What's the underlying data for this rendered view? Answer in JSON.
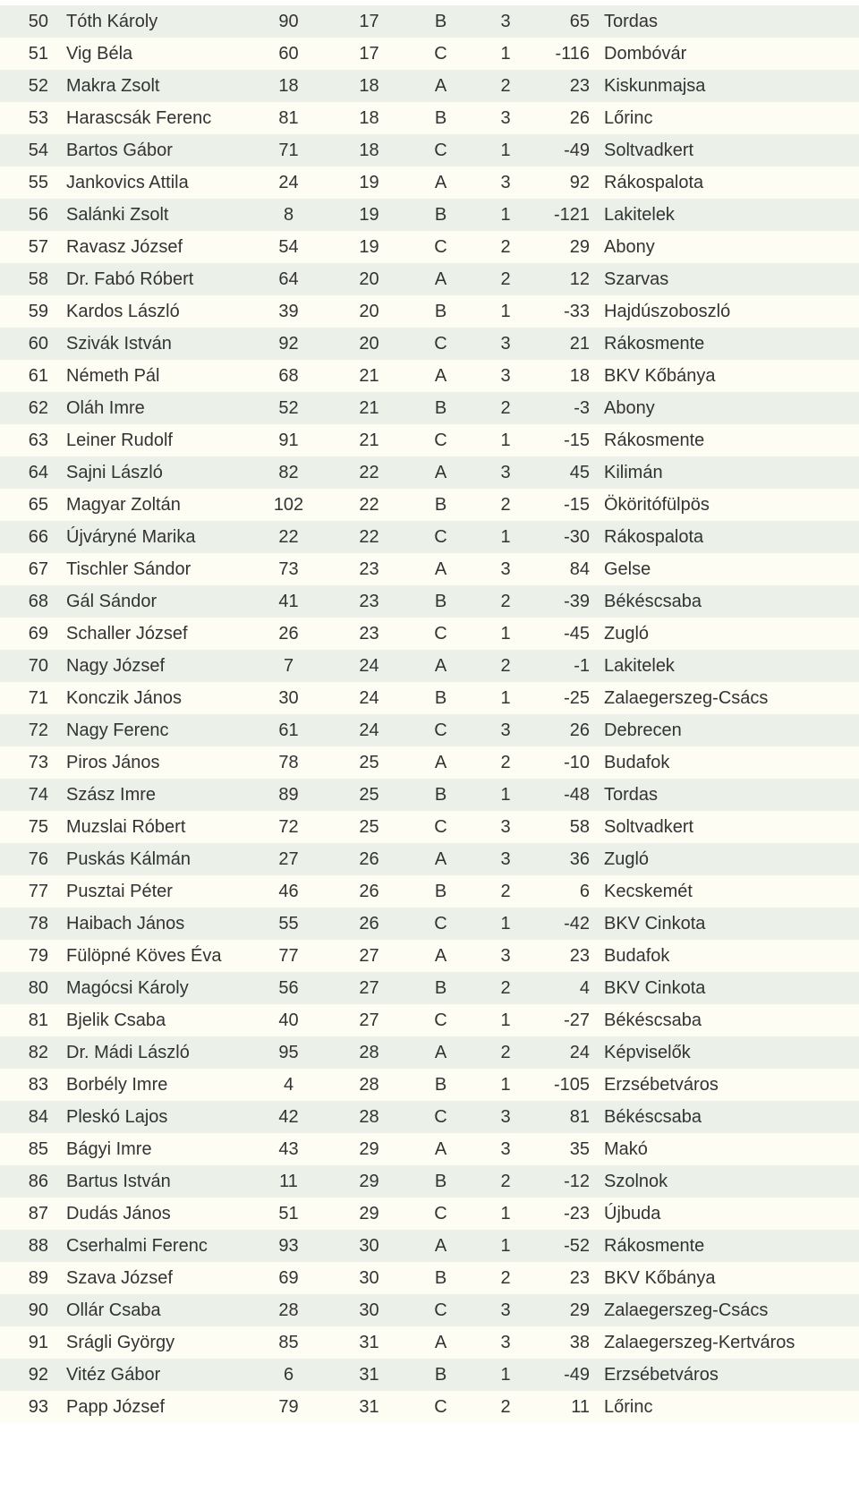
{
  "rows": [
    {
      "rank": "50",
      "name": "Tóth Károly",
      "n1": "90",
      "n2": "17",
      "gr": "B",
      "n3": "3",
      "n4": "65",
      "club": "Tordas"
    },
    {
      "rank": "51",
      "name": "Vig Béla",
      "n1": "60",
      "n2": "17",
      "gr": "C",
      "n3": "1",
      "n4": "-116",
      "club": "Dombóvár"
    },
    {
      "rank": "52",
      "name": "Makra Zsolt",
      "n1": "18",
      "n2": "18",
      "gr": "A",
      "n3": "2",
      "n4": "23",
      "club": "Kiskunmajsa"
    },
    {
      "rank": "53",
      "name": "Harascsák Ferenc",
      "n1": "81",
      "n2": "18",
      "gr": "B",
      "n3": "3",
      "n4": "26",
      "club": "Lőrinc"
    },
    {
      "rank": "54",
      "name": "Bartos Gábor",
      "n1": "71",
      "n2": "18",
      "gr": "C",
      "n3": "1",
      "n4": "-49",
      "club": "Soltvadkert"
    },
    {
      "rank": "55",
      "name": "Jankovics Attila",
      "n1": "24",
      "n2": "19",
      "gr": "A",
      "n3": "3",
      "n4": "92",
      "club": "Rákospalota"
    },
    {
      "rank": "56",
      "name": "Salánki Zsolt",
      "n1": "8",
      "n2": "19",
      "gr": "B",
      "n3": "1",
      "n4": "-121",
      "club": "Lakitelek"
    },
    {
      "rank": "57",
      "name": "Ravasz József",
      "n1": "54",
      "n2": "19",
      "gr": "C",
      "n3": "2",
      "n4": "29",
      "club": "Abony"
    },
    {
      "rank": "58",
      "name": "Dr. Fabó Róbert",
      "n1": "64",
      "n2": "20",
      "gr": "A",
      "n3": "2",
      "n4": "12",
      "club": "Szarvas"
    },
    {
      "rank": "59",
      "name": "Kardos László",
      "n1": "39",
      "n2": "20",
      "gr": "B",
      "n3": "1",
      "n4": "-33",
      "club": "Hajdúszoboszló"
    },
    {
      "rank": "60",
      "name": "Szivák István",
      "n1": "92",
      "n2": "20",
      "gr": "C",
      "n3": "3",
      "n4": "21",
      "club": "Rákosmente"
    },
    {
      "rank": "61",
      "name": "Németh Pál",
      "n1": "68",
      "n2": "21",
      "gr": "A",
      "n3": "3",
      "n4": "18",
      "club": "BKV Kőbánya"
    },
    {
      "rank": "62",
      "name": "Oláh Imre",
      "n1": "52",
      "n2": "21",
      "gr": "B",
      "n3": "2",
      "n4": "-3",
      "club": "Abony"
    },
    {
      "rank": "63",
      "name": "Leiner Rudolf",
      "n1": "91",
      "n2": "21",
      "gr": "C",
      "n3": "1",
      "n4": "-15",
      "club": "Rákosmente"
    },
    {
      "rank": "64",
      "name": "Sajni László",
      "n1": "82",
      "n2": "22",
      "gr": "A",
      "n3": "3",
      "n4": "45",
      "club": "Kilimán"
    },
    {
      "rank": "65",
      "name": "Magyar Zoltán",
      "n1": "102",
      "n2": "22",
      "gr": "B",
      "n3": "2",
      "n4": "-15",
      "club": "Ököritófülpös"
    },
    {
      "rank": "66",
      "name": "Újváryné Marika",
      "n1": "22",
      "n2": "22",
      "gr": "C",
      "n3": "1",
      "n4": "-30",
      "club": "Rákospalota"
    },
    {
      "rank": "67",
      "name": "Tischler Sándor",
      "n1": "73",
      "n2": "23",
      "gr": "A",
      "n3": "3",
      "n4": "84",
      "club": "Gelse"
    },
    {
      "rank": "68",
      "name": "Gál Sándor",
      "n1": "41",
      "n2": "23",
      "gr": "B",
      "n3": "2",
      "n4": "-39",
      "club": "Békéscsaba"
    },
    {
      "rank": "69",
      "name": "Schaller József",
      "n1": "26",
      "n2": "23",
      "gr": "C",
      "n3": "1",
      "n4": "-45",
      "club": "Zugló"
    },
    {
      "rank": "70",
      "name": "Nagy József",
      "n1": "7",
      "n2": "24",
      "gr": "A",
      "n3": "2",
      "n4": "-1",
      "club": "Lakitelek"
    },
    {
      "rank": "71",
      "name": "Konczik János",
      "n1": "30",
      "n2": "24",
      "gr": "B",
      "n3": "1",
      "n4": "-25",
      "club": "Zalaegerszeg-Csács"
    },
    {
      "rank": "72",
      "name": "Nagy Ferenc",
      "n1": "61",
      "n2": "24",
      "gr": "C",
      "n3": "3",
      "n4": "26",
      "club": "Debrecen"
    },
    {
      "rank": "73",
      "name": "Piros János",
      "n1": "78",
      "n2": "25",
      "gr": "A",
      "n3": "2",
      "n4": "-10",
      "club": "Budafok"
    },
    {
      "rank": "74",
      "name": "Szász Imre",
      "n1": "89",
      "n2": "25",
      "gr": "B",
      "n3": "1",
      "n4": "-48",
      "club": "Tordas"
    },
    {
      "rank": "75",
      "name": "Muzslai Róbert",
      "n1": "72",
      "n2": "25",
      "gr": "C",
      "n3": "3",
      "n4": "58",
      "club": "Soltvadkert"
    },
    {
      "rank": "76",
      "name": "Puskás Kálmán",
      "n1": "27",
      "n2": "26",
      "gr": "A",
      "n3": "3",
      "n4": "36",
      "club": "Zugló"
    },
    {
      "rank": "77",
      "name": "Pusztai Péter",
      "n1": "46",
      "n2": "26",
      "gr": "B",
      "n3": "2",
      "n4": "6",
      "club": "Kecskemét"
    },
    {
      "rank": "78",
      "name": "Haibach János",
      "n1": "55",
      "n2": "26",
      "gr": "C",
      "n3": "1",
      "n4": "-42",
      "club": "BKV Cinkota"
    },
    {
      "rank": "79",
      "name": "Fülöpné Köves Éva",
      "n1": "77",
      "n2": "27",
      "gr": "A",
      "n3": "3",
      "n4": "23",
      "club": "Budafok"
    },
    {
      "rank": "80",
      "name": "Magócsi Károly",
      "n1": "56",
      "n2": "27",
      "gr": "B",
      "n3": "2",
      "n4": "4",
      "club": "BKV Cinkota"
    },
    {
      "rank": "81",
      "name": "Bjelik Csaba",
      "n1": "40",
      "n2": "27",
      "gr": "C",
      "n3": "1",
      "n4": "-27",
      "club": "Békéscsaba"
    },
    {
      "rank": "82",
      "name": "Dr. Mádi László",
      "n1": "95",
      "n2": "28",
      "gr": "A",
      "n3": "2",
      "n4": "24",
      "club": "Képviselők"
    },
    {
      "rank": "83",
      "name": "Borbély Imre",
      "n1": "4",
      "n2": "28",
      "gr": "B",
      "n3": "1",
      "n4": "-105",
      "club": "Erzsébetváros"
    },
    {
      "rank": "84",
      "name": "Pleskó Lajos",
      "n1": "42",
      "n2": "28",
      "gr": "C",
      "n3": "3",
      "n4": "81",
      "club": "Békéscsaba"
    },
    {
      "rank": "85",
      "name": "Bágyi Imre",
      "n1": "43",
      "n2": "29",
      "gr": "A",
      "n3": "3",
      "n4": "35",
      "club": "Makó"
    },
    {
      "rank": "86",
      "name": "Bartus István",
      "n1": "11",
      "n2": "29",
      "gr": "B",
      "n3": "2",
      "n4": "-12",
      "club": "Szolnok"
    },
    {
      "rank": "87",
      "name": "Dudás János",
      "n1": "51",
      "n2": "29",
      "gr": "C",
      "n3": "1",
      "n4": "-23",
      "club": "Újbuda"
    },
    {
      "rank": "88",
      "name": "Cserhalmi Ferenc",
      "n1": "93",
      "n2": "30",
      "gr": "A",
      "n3": "1",
      "n4": "-52",
      "club": "Rákosmente"
    },
    {
      "rank": "89",
      "name": "Szava József",
      "n1": "69",
      "n2": "30",
      "gr": "B",
      "n3": "2",
      "n4": "23",
      "club": "BKV Kőbánya"
    },
    {
      "rank": "90",
      "name": "Ollár Csaba",
      "n1": "28",
      "n2": "30",
      "gr": "C",
      "n3": "3",
      "n4": "29",
      "club": "Zalaegerszeg-Csács"
    },
    {
      "rank": "91",
      "name": "Srágli György",
      "n1": "85",
      "n2": "31",
      "gr": "A",
      "n3": "3",
      "n4": "38",
      "club": "Zalaegerszeg-Kertváros"
    },
    {
      "rank": "92",
      "name": "Vitéz Gábor",
      "n1": "6",
      "n2": "31",
      "gr": "B",
      "n3": "1",
      "n4": "-49",
      "club": "Erzsébetváros"
    },
    {
      "rank": "93",
      "name": "Papp József",
      "n1": "79",
      "n2": "31",
      "gr": "C",
      "n3": "2",
      "n4": "11",
      "club": "Lőrinc"
    }
  ]
}
